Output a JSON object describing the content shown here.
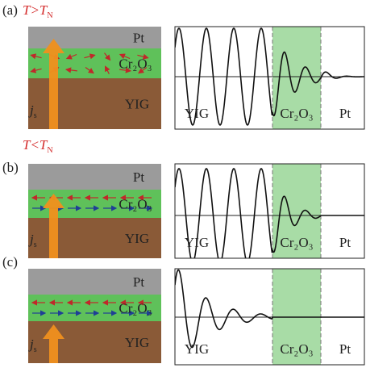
{
  "panels": [
    {
      "label": "(a)",
      "condition": {
        "text": "T>T",
        "subscript": "N"
      },
      "layers": {
        "top": "Pt",
        "middle": "Cr₂O₃",
        "bottom": "YIG"
      },
      "current": {
        "symbol": "j",
        "subscript": "s"
      },
      "plot_labels": [
        "YIG",
        "Cr₂O₃",
        "Pt"
      ]
    },
    {
      "label": "(b)",
      "condition": {
        "text": "T<T",
        "subscript": "N"
      },
      "layers": {
        "top": "Pt",
        "middle": "Cr₂O₃",
        "bottom": "YIG"
      },
      "current": {
        "symbol": "j",
        "subscript": "s"
      },
      "plot_labels": [
        "YIG",
        "Cr₂O₃",
        "Pt"
      ]
    },
    {
      "label": "(c)",
      "layers": {
        "top": "Pt",
        "middle": "Cr₂O₃",
        "bottom": "YIG"
      },
      "current": {
        "symbol": "j",
        "subscript": "s"
      },
      "plot_labels": [
        "YIG",
        "Cr₂O₃",
        "Pt"
      ]
    }
  ]
}
